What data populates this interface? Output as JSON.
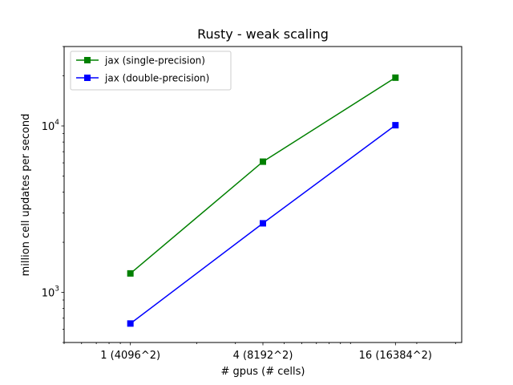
{
  "chart_data": {
    "type": "line",
    "title": "Rusty - weak scaling",
    "xlabel": "# gpus (# cells)",
    "ylabel": "million cell updates per second",
    "x_scale": "log",
    "y_scale": "log",
    "x": [
      1,
      4,
      16
    ],
    "x_tick_labels": [
      "1 (4096^2)",
      "4 (8192^2)",
      "16 (16384^2)"
    ],
    "xlim": [
      0.5,
      32
    ],
    "ylim": [
      500,
      30000
    ],
    "y_major_ticks": [
      1000,
      10000
    ],
    "y_tick_labels": [
      {
        "base": "10",
        "exp": "3"
      },
      {
        "base": "10",
        "exp": "4"
      }
    ],
    "series": [
      {
        "name": "jax (single-precision)",
        "color": "#008000",
        "marker": "square",
        "values": [
          1300,
          6100,
          19500
        ]
      },
      {
        "name": "jax (double-precision)",
        "color": "#0000ff",
        "marker": "square",
        "values": [
          650,
          2600,
          10100
        ]
      }
    ],
    "legend_position": "top-left",
    "grid": false
  }
}
